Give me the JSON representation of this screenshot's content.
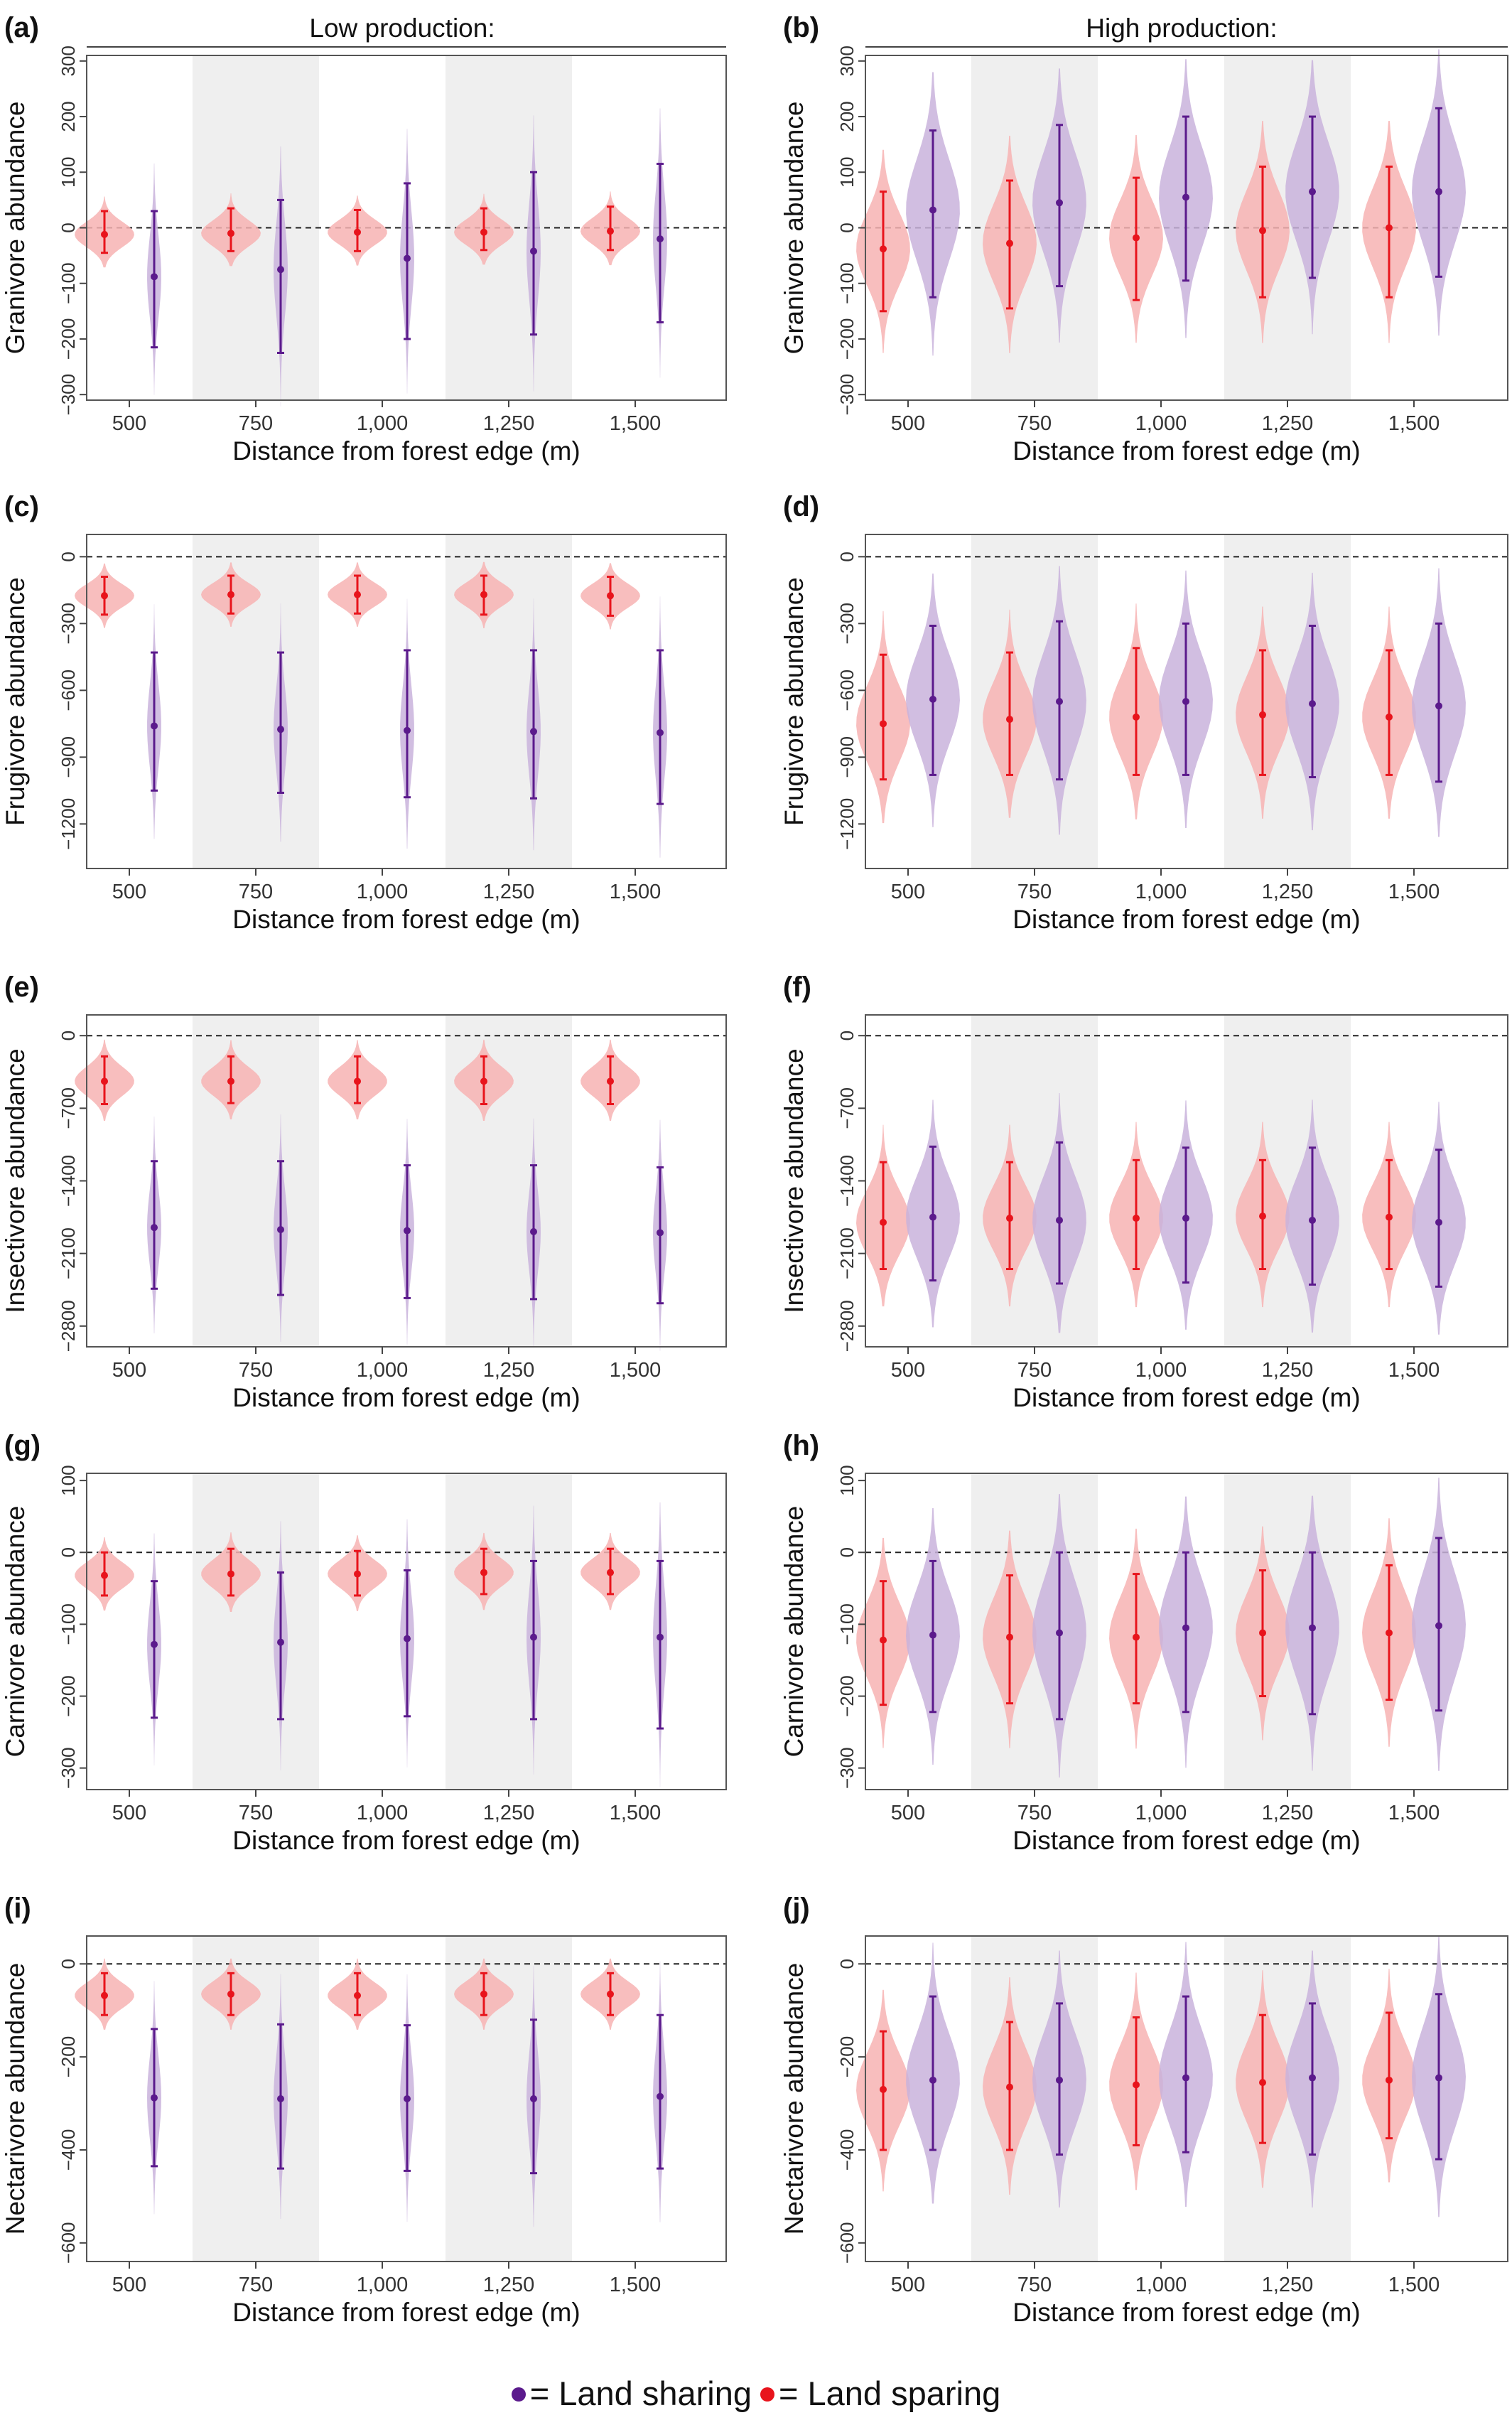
{
  "column_titles": [
    "Low production:",
    "High production:"
  ],
  "xlabel": "Distance from forest edge (m)",
  "x_tick_labels": [
    "500",
    "750",
    "1,000",
    "1,250",
    "1,500"
  ],
  "legend": {
    "sharing_label": "= Land sharing",
    "sparing_label": "= Land sparing",
    "sharing_color": "#5b1a8c",
    "sparing_color": "#e8141c"
  },
  "chart_data": [
    {
      "type": "violin",
      "panel": "(a)",
      "ylabel": "Granivore abundance",
      "ylim": [
        -310,
        310
      ],
      "yticks": [
        300,
        200,
        100,
        0,
        -100,
        -200,
        -300
      ],
      "x": [
        500,
        750,
        1000,
        1250,
        1500
      ],
      "series": [
        {
          "name": "Land sparing",
          "median": [
            -12,
            -10,
            -8,
            -8,
            -6
          ],
          "lower": [
            -45,
            -42,
            -42,
            -40,
            -40
          ],
          "upper": [
            30,
            35,
            32,
            35,
            38
          ]
        },
        {
          "name": "Land sharing",
          "median": [
            -88,
            -75,
            -55,
            -42,
            -20
          ],
          "lower": [
            -215,
            -225,
            -200,
            -192,
            -170
          ],
          "upper": [
            30,
            50,
            80,
            100,
            115
          ]
        }
      ]
    },
    {
      "type": "violin",
      "panel": "(b)",
      "ylabel": "Granivore abundance",
      "ylim": [
        -310,
        310
      ],
      "yticks": [
        300,
        200,
        100,
        0,
        -100,
        -200,
        -300
      ],
      "x": [
        500,
        750,
        1000,
        1250,
        1500
      ],
      "series": [
        {
          "name": "Land sparing",
          "median": [
            -38,
            -28,
            -18,
            -5,
            0
          ],
          "lower": [
            -150,
            -145,
            -130,
            -125,
            -125
          ],
          "upper": [
            65,
            85,
            90,
            110,
            110
          ]
        },
        {
          "name": "Land sharing",
          "median": [
            32,
            45,
            55,
            65,
            65
          ],
          "lower": [
            -125,
            -105,
            -95,
            -90,
            -88
          ],
          "upper": [
            175,
            185,
            200,
            200,
            215
          ]
        }
      ]
    },
    {
      "type": "violin",
      "panel": "(c)",
      "ylabel": "Frugivore abundance",
      "ylim": [
        -1400,
        100
      ],
      "yticks": [
        0,
        -300,
        -600,
        -900,
        -1200
      ],
      "x": [
        500,
        750,
        1000,
        1250,
        1500
      ],
      "series": [
        {
          "name": "Land sparing",
          "median": [
            -175,
            -170,
            -170,
            -170,
            -175
          ],
          "lower": [
            -260,
            -255,
            -255,
            -260,
            -265
          ],
          "upper": [
            -90,
            -85,
            -85,
            -85,
            -90
          ]
        },
        {
          "name": "Land sharing",
          "median": [
            -760,
            -775,
            -780,
            -785,
            -790
          ],
          "lower": [
            -1050,
            -1060,
            -1080,
            -1085,
            -1110
          ],
          "upper": [
            -430,
            -430,
            -420,
            -420,
            -420
          ]
        }
      ]
    },
    {
      "type": "violin",
      "panel": "(d)",
      "ylabel": "Frugivore abundance",
      "ylim": [
        -1400,
        100
      ],
      "yticks": [
        0,
        -300,
        -600,
        -900,
        -1200
      ],
      "x": [
        500,
        750,
        1000,
        1250,
        1500
      ],
      "series": [
        {
          "name": "Land sparing",
          "median": [
            -750,
            -730,
            -720,
            -710,
            -720
          ],
          "lower": [
            -1000,
            -980,
            -980,
            -980,
            -980
          ],
          "upper": [
            -440,
            -430,
            -410,
            -420,
            -420
          ]
        },
        {
          "name": "Land sharing",
          "median": [
            -640,
            -650,
            -650,
            -660,
            -670
          ],
          "lower": [
            -980,
            -1000,
            -980,
            -990,
            -1010
          ],
          "upper": [
            -310,
            -290,
            -300,
            -310,
            -300
          ]
        }
      ]
    },
    {
      "type": "violin",
      "panel": "(e)",
      "ylabel": "Insectivore abundance",
      "ylim": [
        -3000,
        200
      ],
      "yticks": [
        0,
        -700,
        -1400,
        -2100,
        -2800
      ],
      "x": [
        500,
        750,
        1000,
        1250,
        1500
      ],
      "series": [
        {
          "name": "Land sparing",
          "median": [
            -440,
            -440,
            -440,
            -440,
            -440
          ],
          "lower": [
            -660,
            -650,
            -650,
            -660,
            -660
          ],
          "upper": [
            -200,
            -200,
            -200,
            -200,
            -200
          ]
        },
        {
          "name": "Land sharing",
          "median": [
            -1850,
            -1870,
            -1880,
            -1890,
            -1900
          ],
          "lower": [
            -2440,
            -2500,
            -2530,
            -2540,
            -2580
          ],
          "upper": [
            -1210,
            -1210,
            -1250,
            -1250,
            -1270
          ]
        }
      ]
    },
    {
      "type": "violin",
      "panel": "(f)",
      "ylabel": "Insectivore abundance",
      "ylim": [
        -3000,
        200
      ],
      "yticks": [
        0,
        -700,
        -1400,
        -2100,
        -2800
      ],
      "x": [
        500,
        750,
        1000,
        1250,
        1500
      ],
      "series": [
        {
          "name": "Land sparing",
          "median": [
            -1800,
            -1760,
            -1760,
            -1740,
            -1750
          ],
          "lower": [
            -2250,
            -2250,
            -2250,
            -2250,
            -2250
          ],
          "upper": [
            -1220,
            -1220,
            -1200,
            -1200,
            -1200
          ]
        },
        {
          "name": "Land sharing",
          "median": [
            -1750,
            -1780,
            -1760,
            -1780,
            -1800
          ],
          "lower": [
            -2360,
            -2390,
            -2380,
            -2400,
            -2420
          ],
          "upper": [
            -1070,
            -1030,
            -1080,
            -1080,
            -1100
          ]
        }
      ]
    },
    {
      "type": "violin",
      "panel": "(g)",
      "ylabel": "Carnivore abundance",
      "ylim": [
        -330,
        110
      ],
      "yticks": [
        100,
        0,
        -100,
        -200,
        -300
      ],
      "x": [
        500,
        750,
        1000,
        1250,
        1500
      ],
      "series": [
        {
          "name": "Land sparing",
          "median": [
            -32,
            -30,
            -30,
            -28,
            -28
          ],
          "lower": [
            -60,
            -60,
            -60,
            -58,
            -58
          ],
          "upper": [
            0,
            5,
            2,
            5,
            5
          ]
        },
        {
          "name": "Land sharing",
          "median": [
            -128,
            -125,
            -120,
            -118,
            -118
          ],
          "lower": [
            -230,
            -232,
            -228,
            -232,
            -245
          ],
          "upper": [
            -40,
            -28,
            -25,
            -12,
            -12
          ]
        }
      ]
    },
    {
      "type": "violin",
      "panel": "(h)",
      "ylabel": "Carnivore abundance",
      "ylim": [
        -330,
        110
      ],
      "yticks": [
        100,
        0,
        -100,
        -200,
        -300
      ],
      "x": [
        500,
        750,
        1000,
        1250,
        1500
      ],
      "series": [
        {
          "name": "Land sparing",
          "median": [
            -122,
            -118,
            -118,
            -112,
            -112
          ],
          "lower": [
            -212,
            -210,
            -210,
            -200,
            -205
          ],
          "upper": [
            -40,
            -32,
            -30,
            -25,
            -18
          ]
        },
        {
          "name": "Land sharing",
          "median": [
            -115,
            -112,
            -105,
            -105,
            -102
          ],
          "lower": [
            -222,
            -232,
            -222,
            -225,
            -220
          ],
          "upper": [
            -12,
            0,
            0,
            0,
            20
          ]
        }
      ]
    },
    {
      "type": "violin",
      "panel": "(i)",
      "ylabel": "Nectarivore abundance",
      "ylim": [
        -640,
        60
      ],
      "yticks": [
        0,
        -200,
        -400,
        -600
      ],
      "x": [
        500,
        750,
        1000,
        1250,
        1500
      ],
      "series": [
        {
          "name": "Land sparing",
          "median": [
            -68,
            -65,
            -68,
            -65,
            -65
          ],
          "lower": [
            -110,
            -110,
            -110,
            -110,
            -110
          ],
          "upper": [
            -20,
            -20,
            -20,
            -20,
            -20
          ]
        },
        {
          "name": "Land sharing",
          "median": [
            -288,
            -290,
            -290,
            -290,
            -285
          ],
          "lower": [
            -435,
            -440,
            -445,
            -450,
            -440
          ],
          "upper": [
            -140,
            -130,
            -132,
            -120,
            -110
          ]
        }
      ]
    },
    {
      "type": "violin",
      "panel": "(j)",
      "ylabel": "Nectarivore abundance",
      "ylim": [
        -640,
        60
      ],
      "yticks": [
        0,
        -200,
        -400,
        -600
      ],
      "x": [
        500,
        750,
        1000,
        1250,
        1500
      ],
      "series": [
        {
          "name": "Land sparing",
          "median": [
            -270,
            -265,
            -260,
            -255,
            -250
          ],
          "lower": [
            -400,
            -400,
            -390,
            -385,
            -375
          ],
          "upper": [
            -145,
            -125,
            -115,
            -110,
            -105
          ]
        },
        {
          "name": "Land sharing",
          "median": [
            -250,
            -250,
            -245,
            -245,
            -245
          ],
          "lower": [
            -400,
            -410,
            -405,
            -410,
            -420
          ],
          "upper": [
            -70,
            -85,
            -70,
            -85,
            -65
          ]
        }
      ]
    }
  ]
}
